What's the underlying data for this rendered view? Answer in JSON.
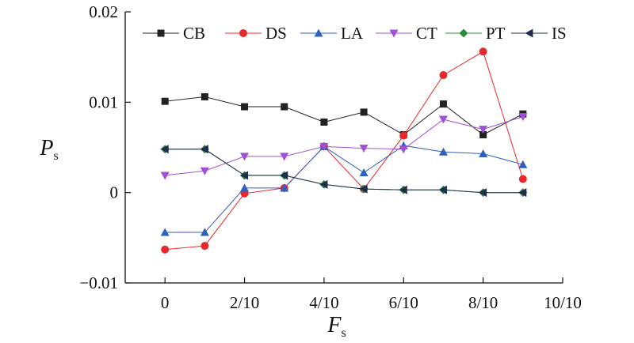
{
  "chart_data": {
    "type": "line",
    "title": "",
    "xlabel": "F",
    "xlabel_sub": "s",
    "ylabel": "P",
    "ylabel_sub": "s",
    "x": [
      0,
      0.1,
      0.2,
      0.3,
      0.4,
      0.5,
      0.6,
      0.7,
      0.8,
      0.9
    ],
    "xlim": [
      -0.1,
      1.0
    ],
    "ylim": [
      -0.01,
      0.02
    ],
    "xticks": [
      {
        "value": 0,
        "label": "0"
      },
      {
        "value": 0.2,
        "label": "2/10"
      },
      {
        "value": 0.4,
        "label": "4/10"
      },
      {
        "value": 0.6,
        "label": "6/10"
      },
      {
        "value": 0.8,
        "label": "8/10"
      },
      {
        "value": 1.0,
        "label": "10/10"
      }
    ],
    "yticks": [
      {
        "value": -0.01,
        "label": "−0.01"
      },
      {
        "value": 0,
        "label": "0"
      },
      {
        "value": 0.01,
        "label": "0.01"
      },
      {
        "value": 0.02,
        "label": "0.02"
      }
    ],
    "grid": false,
    "legend_position": "top",
    "series": [
      {
        "name": "CB",
        "color": "#222222",
        "marker": "square",
        "values": [
          0.0101,
          0.0106,
          0.0095,
          0.0095,
          0.0078,
          0.0089,
          0.0064,
          0.0098,
          0.0064,
          0.0087
        ]
      },
      {
        "name": "DS",
        "color": "#e8282b",
        "marker": "circle",
        "values": [
          -0.0063,
          -0.0059,
          -0.0001,
          0.0005,
          0.0051,
          0.0004,
          0.0063,
          0.013,
          0.0156,
          0.0015
        ]
      },
      {
        "name": "LA",
        "color": "#2f5fbf",
        "marker": "triangle-up",
        "values": [
          -0.0044,
          -0.0044,
          0.0005,
          0.0005,
          0.0051,
          0.0022,
          0.0052,
          0.0045,
          0.0043,
          0.0031
        ]
      },
      {
        "name": "CT",
        "color": "#a14fd6",
        "marker": "triangle-down",
        "values": [
          0.0019,
          0.0024,
          0.004,
          0.004,
          0.0051,
          0.0049,
          0.0048,
          0.0081,
          0.007,
          0.0084
        ]
      },
      {
        "name": "PT",
        "color": "#2e8b3d",
        "marker": "diamond",
        "values": [
          0.0048,
          0.0048,
          0.0019,
          0.0019,
          0.0009,
          0.0004,
          0.0003,
          0.0003,
          0.0,
          0.0
        ]
      },
      {
        "name": "IS",
        "color": "#1f2d4f",
        "marker": "triangle-left",
        "values": [
          0.0048,
          0.0048,
          0.0019,
          0.0019,
          0.0009,
          0.0004,
          0.0003,
          0.0003,
          0.0,
          0.0
        ]
      }
    ]
  }
}
